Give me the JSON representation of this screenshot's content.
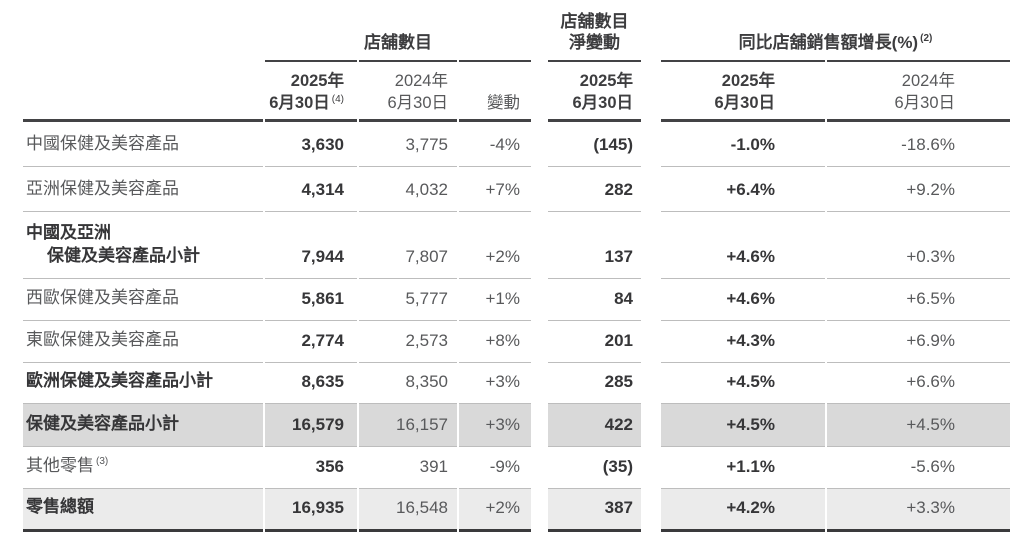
{
  "header": {
    "groups": {
      "stores": {
        "title": "店舖數目"
      },
      "net_change": {
        "title_line1": "店舖數目",
        "title_line2": "淨變動"
      },
      "ssg": {
        "title": "同比店舖銷售額增長(%)",
        "footnote": "(2)"
      }
    },
    "cols": {
      "stores_2025": {
        "line1": "2025年",
        "line2": "6月30日",
        "footnote": "(4)"
      },
      "stores_2024": {
        "line1": "2024年",
        "line2": "6月30日"
      },
      "change": {
        "label": "變動"
      },
      "net_2025": {
        "line1": "2025年",
        "line2": "6月30日"
      },
      "ssg_2025": {
        "line1": "2025年",
        "line2": "6月30日"
      },
      "ssg_2024": {
        "line1": "2024年",
        "line2": "6月30日"
      }
    }
  },
  "rows": [
    {
      "label": "中國保健及美容產品",
      "values": [
        "3,630",
        "3,775",
        "-4%",
        "(145)",
        "-1.0%",
        "-18.6%"
      ]
    },
    {
      "label": "亞洲保健及美容產品",
      "values": [
        "4,314",
        "4,032",
        "+7%",
        "282",
        "+6.4%",
        "+9.2%"
      ]
    },
    {
      "label_line1": "中國及亞洲",
      "label_line2": "保健及美容產品小計",
      "values": [
        "7,944",
        "7,807",
        "+2%",
        "137",
        "+4.6%",
        "+0.3%"
      ]
    },
    {
      "label": "西歐保健及美容產品",
      "values": [
        "5,861",
        "5,777",
        "+1%",
        "84",
        "+4.6%",
        "+6.5%"
      ]
    },
    {
      "label": "東歐保健及美容產品",
      "values": [
        "2,774",
        "2,573",
        "+8%",
        "201",
        "+4.3%",
        "+6.9%"
      ]
    },
    {
      "label": "歐洲保健及美容產品小計",
      "values": [
        "8,635",
        "8,350",
        "+3%",
        "285",
        "+4.5%",
        "+6.6%"
      ]
    },
    {
      "label": "保健及美容產品小計",
      "values": [
        "16,579",
        "16,157",
        "+3%",
        "422",
        "+4.5%",
        "+4.5%"
      ]
    },
    {
      "label": "其他零售",
      "footnote": "(3)",
      "values": [
        "356",
        "391",
        "-9%",
        "(35)",
        "+1.1%",
        "-5.6%"
      ]
    },
    {
      "label": "零售總額",
      "values": [
        "16,935",
        "16,548",
        "+2%",
        "387",
        "+4.2%",
        "+3.3%"
      ]
    }
  ],
  "style": {
    "highlight_row_dark_bg": "#d9d9d9",
    "highlight_row_light_bg": "#ebebeb",
    "rule_dark": "#434345",
    "rule_light": "#bdbdbd",
    "text_regular": "#58595b",
    "text_bold": "#363638"
  }
}
